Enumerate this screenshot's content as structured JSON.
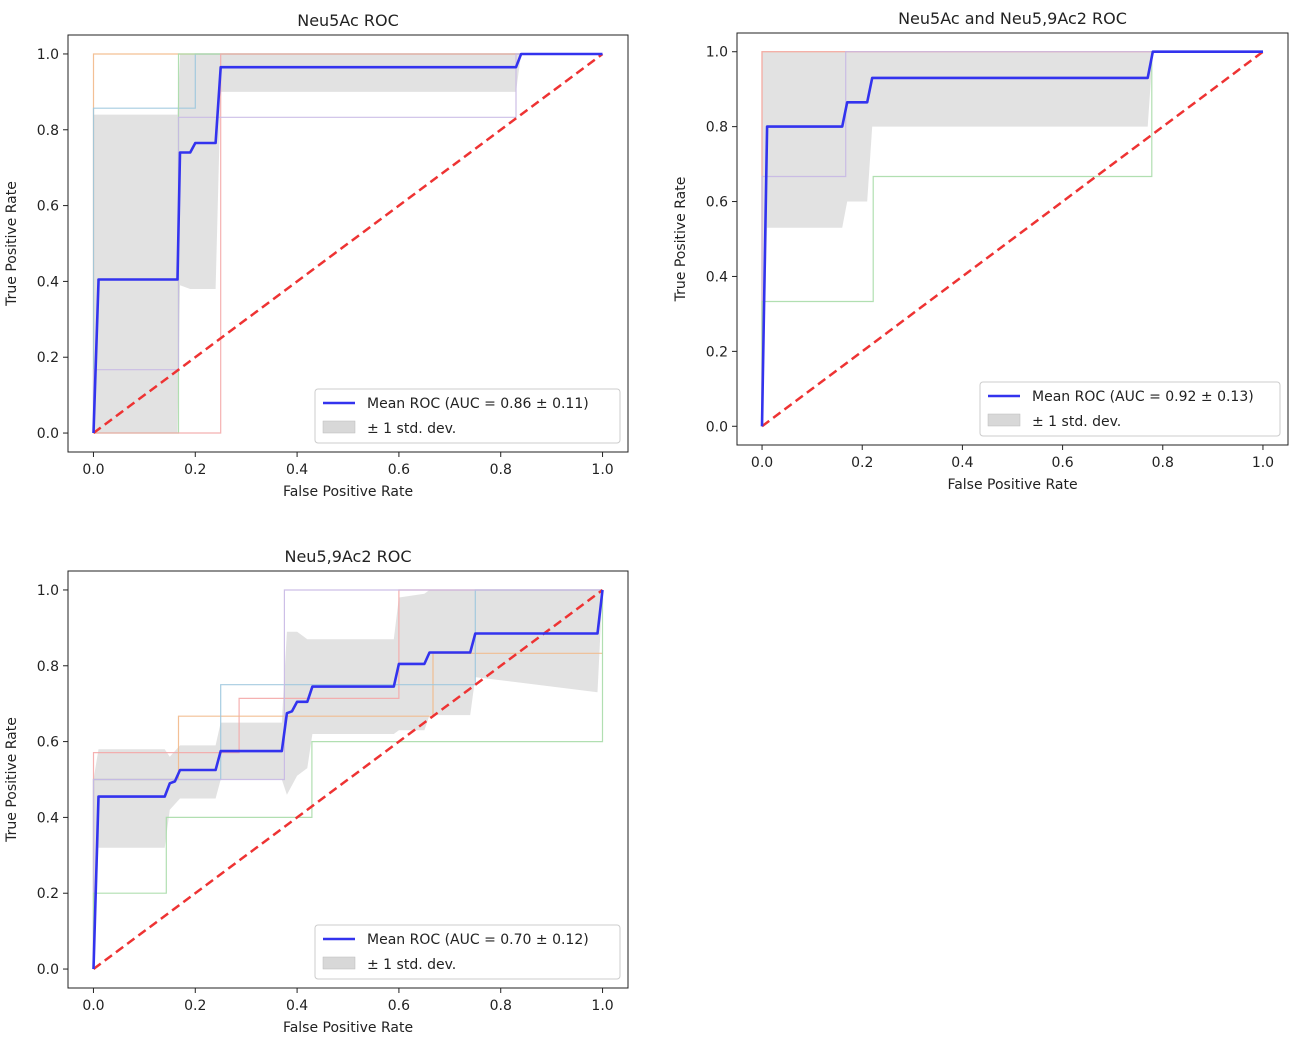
{
  "chart_data": [
    {
      "type": "line",
      "title": "Neu5Ac ROC",
      "xlabel": "False Positive Rate",
      "ylabel": "True Positive Rate",
      "xlim": [
        -0.05,
        1.05
      ],
      "ylim": [
        -0.05,
        1.05
      ],
      "xticks": [
        "0.0",
        "0.2",
        "0.4",
        "0.6",
        "0.8",
        "1.0"
      ],
      "yticks": [
        "0.0",
        "0.2",
        "0.4",
        "0.6",
        "0.8",
        "1.0"
      ],
      "grid": false,
      "legend_position": "lower-right",
      "legend": {
        "mean_label": "Mean ROC (AUC = 0.86 ± 0.11)",
        "std_label": "± 1 std. dev."
      },
      "chance_line": {
        "x": [
          0,
          1
        ],
        "y": [
          0,
          1
        ],
        "color": "#ee3333"
      },
      "mean_roc": {
        "x": [
          0,
          0.01,
          0.01,
          0.165,
          0.17,
          0.175,
          0.19,
          0.2,
          0.24,
          0.25,
          0.83,
          0.84,
          1.0
        ],
        "y": [
          0,
          0.4,
          0.405,
          0.405,
          0.74,
          0.74,
          0.74,
          0.765,
          0.765,
          0.965,
          0.965,
          1.0,
          1.0
        ],
        "color": "#3333ee"
      },
      "std_band": {
        "x": [
          0,
          0.01,
          0.165,
          0.17,
          0.19,
          0.2,
          0.24,
          0.25,
          0.83,
          0.84,
          1.0
        ],
        "upper": [
          0.84,
          0.84,
          0.84,
          1.0,
          1.0,
          1.0,
          1.0,
          1.0,
          1.0,
          1.0,
          1.0
        ],
        "lower": [
          0,
          0,
          0,
          0.39,
          0.38,
          0.38,
          0.38,
          0.9,
          0.9,
          1.0,
          1.0
        ],
        "color": "#d8d8d8"
      },
      "folds": [
        {
          "color": "#f2b98a",
          "x": [
            0,
            0,
            1
          ],
          "y": [
            0,
            1,
            1
          ]
        },
        {
          "color": "#9cc7de",
          "x": [
            0,
            0,
            0.2,
            0.2,
            1
          ],
          "y": [
            0,
            0.857,
            0.857,
            1,
            1
          ]
        },
        {
          "color": "#a8dca8",
          "x": [
            0,
            0.167,
            0.167,
            1
          ],
          "y": [
            0,
            0,
            1,
            1
          ]
        },
        {
          "color": "#f4a8a8",
          "x": [
            0,
            0.25,
            0.25,
            1
          ],
          "y": [
            0,
            0,
            1,
            1
          ]
        },
        {
          "color": "#c8b8e4",
          "x": [
            0,
            0,
            0.167,
            0.167,
            0.83,
            0.83,
            1
          ],
          "y": [
            0,
            0.167,
            0.167,
            0.833,
            0.833,
            1,
            1
          ]
        }
      ]
    },
    {
      "type": "line",
      "title": "Neu5Ac and Neu5,9Ac2 ROC",
      "xlabel": "False Positive Rate",
      "ylabel": "True Positive Rate",
      "xlim": [
        -0.05,
        1.05
      ],
      "ylim": [
        -0.05,
        1.05
      ],
      "xticks": [
        "0.0",
        "0.2",
        "0.4",
        "0.6",
        "0.8",
        "1.0"
      ],
      "yticks": [
        "0.0",
        "0.2",
        "0.4",
        "0.6",
        "0.8",
        "1.0"
      ],
      "grid": false,
      "legend_position": "lower-right",
      "legend": {
        "mean_label": "Mean ROC (AUC = 0.92 ± 0.13)",
        "std_label": "± 1 std. dev."
      },
      "chance_line": {
        "x": [
          0,
          1
        ],
        "y": [
          0,
          1
        ],
        "color": "#ee3333"
      },
      "mean_roc": {
        "x": [
          0,
          0.01,
          0.16,
          0.17,
          0.21,
          0.22,
          0.77,
          0.78,
          1.0
        ],
        "y": [
          0,
          0.8,
          0.8,
          0.865,
          0.865,
          0.93,
          0.93,
          1.0,
          1.0
        ],
        "color": "#3333ee"
      },
      "std_band": {
        "x": [
          0,
          0.01,
          0.16,
          0.17,
          0.21,
          0.22,
          0.77,
          0.78,
          1.0
        ],
        "upper": [
          1.0,
          1.0,
          1.0,
          1.0,
          1.0,
          1.0,
          1.0,
          1.0,
          1.0
        ],
        "lower": [
          0,
          0.53,
          0.53,
          0.6,
          0.6,
          0.8,
          0.8,
          1.0,
          1.0
        ],
        "color": "#d8d8d8"
      },
      "folds": [
        {
          "color": "#f2b98a",
          "x": [
            0,
            0,
            1
          ],
          "y": [
            0,
            1,
            1
          ]
        },
        {
          "color": "#f4a8a8",
          "x": [
            0,
            0,
            1
          ],
          "y": [
            0,
            1,
            1
          ]
        },
        {
          "color": "#c8b8e4",
          "x": [
            0,
            0,
            0.167,
            0.167,
            1
          ],
          "y": [
            0,
            0.667,
            0.667,
            1,
            1
          ]
        },
        {
          "color": "#a8dca8",
          "x": [
            0,
            0,
            0.222,
            0.222,
            0.778,
            0.778,
            1
          ],
          "y": [
            0,
            0.333,
            0.333,
            0.667,
            0.667,
            1,
            1
          ]
        }
      ]
    },
    {
      "type": "line",
      "title": "Neu5,9Ac2 ROC",
      "xlabel": "False Positive Rate",
      "ylabel": "True Positive Rate",
      "xlim": [
        -0.05,
        1.05
      ],
      "ylim": [
        -0.05,
        1.05
      ],
      "xticks": [
        "0.0",
        "0.2",
        "0.4",
        "0.6",
        "0.8",
        "1.0"
      ],
      "yticks": [
        "0.0",
        "0.2",
        "0.4",
        "0.6",
        "0.8",
        "1.0"
      ],
      "grid": false,
      "legend_position": "lower-right",
      "legend": {
        "mean_label": "Mean ROC (AUC = 0.70 ± 0.12)",
        "std_label": "± 1 std. dev."
      },
      "chance_line": {
        "x": [
          0,
          1
        ],
        "y": [
          0,
          1
        ],
        "color": "#ee3333"
      },
      "mean_roc": {
        "x": [
          0,
          0.01,
          0.14,
          0.15,
          0.16,
          0.17,
          0.24,
          0.25,
          0.37,
          0.38,
          0.39,
          0.4,
          0.42,
          0.43,
          0.59,
          0.6,
          0.65,
          0.66,
          0.74,
          0.75,
          0.99,
          1.0
        ],
        "y": [
          0,
          0.455,
          0.455,
          0.49,
          0.495,
          0.525,
          0.525,
          0.575,
          0.575,
          0.675,
          0.68,
          0.705,
          0.705,
          0.745,
          0.745,
          0.805,
          0.805,
          0.835,
          0.835,
          0.885,
          0.885,
          1.0
        ],
        "color": "#3333ee"
      },
      "std_band": {
        "x": [
          0,
          0.01,
          0.14,
          0.15,
          0.17,
          0.24,
          0.25,
          0.37,
          0.38,
          0.4,
          0.42,
          0.43,
          0.59,
          0.6,
          0.65,
          0.66,
          0.74,
          0.75,
          0.99,
          1.0
        ],
        "upper": [
          0.5,
          0.58,
          0.58,
          0.56,
          0.59,
          0.59,
          0.65,
          0.65,
          0.89,
          0.89,
          0.87,
          0.87,
          0.87,
          0.98,
          0.99,
          1.0,
          1.0,
          1.0,
          1.0,
          1.0
        ],
        "lower": [
          0,
          0.32,
          0.32,
          0.42,
          0.45,
          0.45,
          0.5,
          0.5,
          0.46,
          0.51,
          0.53,
          0.62,
          0.62,
          0.63,
          0.63,
          0.67,
          0.67,
          0.77,
          0.73,
          1.0
        ],
        "color": "#d8d8d8"
      },
      "folds": [
        {
          "color": "#f4a8a8",
          "x": [
            0,
            0,
            0.286,
            0.286,
            0.6,
            0.6,
            1
          ],
          "y": [
            0,
            0.571,
            0.571,
            0.714,
            0.714,
            1,
            1
          ]
        },
        {
          "color": "#f2b98a",
          "x": [
            0,
            0,
            0.167,
            0.167,
            0.667,
            0.667,
            1
          ],
          "y": [
            0,
            0.5,
            0.5,
            0.667,
            0.667,
            0.833,
            0.833
          ]
        },
        {
          "color": "#9cc7de",
          "x": [
            0,
            0,
            0.25,
            0.25,
            0.75,
            0.75,
            1
          ],
          "y": [
            0,
            0.5,
            0.5,
            0.75,
            0.75,
            1,
            1
          ]
        },
        {
          "color": "#c8b8e4",
          "x": [
            0,
            0,
            0.375,
            0.375,
            1
          ],
          "y": [
            0,
            0.5,
            0.5,
            1,
            1
          ]
        },
        {
          "color": "#a8dca8",
          "x": [
            0,
            0,
            0.143,
            0.143,
            0.429,
            0.429,
            1,
            1
          ],
          "y": [
            0,
            0.2,
            0.2,
            0.4,
            0.4,
            0.6,
            0.6,
            1
          ]
        }
      ]
    }
  ]
}
